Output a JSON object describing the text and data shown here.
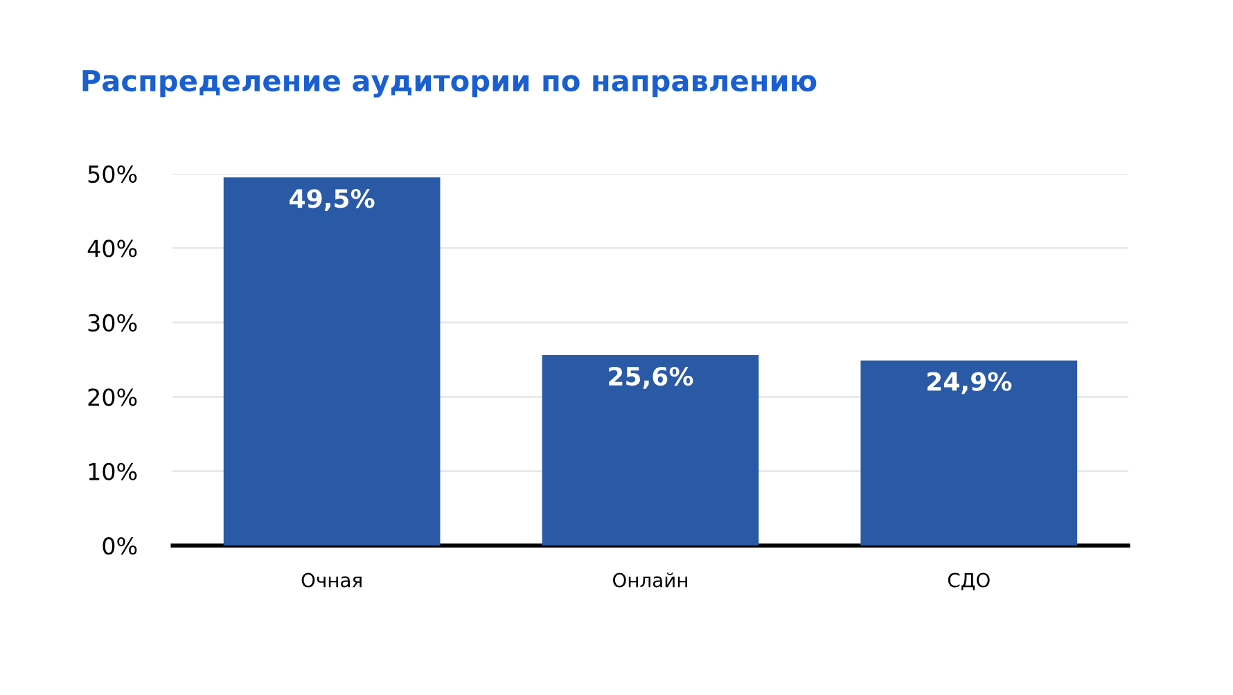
{
  "chart_data": {
    "type": "bar",
    "title": "Распределение аудитории по направлению",
    "categories": [
      "Очная",
      "Онлайн",
      "СДО"
    ],
    "values": [
      49.5,
      25.6,
      24.9
    ],
    "value_labels": [
      "49,5%",
      "25,6%",
      "24,9%"
    ],
    "color": "#2a5aa6",
    "ylim": [
      0,
      50
    ],
    "yticks": [
      {
        "value": 0,
        "label": "0%"
      },
      {
        "value": 10,
        "label": "10%"
      },
      {
        "value": 20,
        "label": "20%"
      },
      {
        "value": 30,
        "label": "30%"
      },
      {
        "value": 40,
        "label": "40%"
      },
      {
        "value": 50,
        "label": "50%"
      }
    ],
    "grid": "y"
  }
}
